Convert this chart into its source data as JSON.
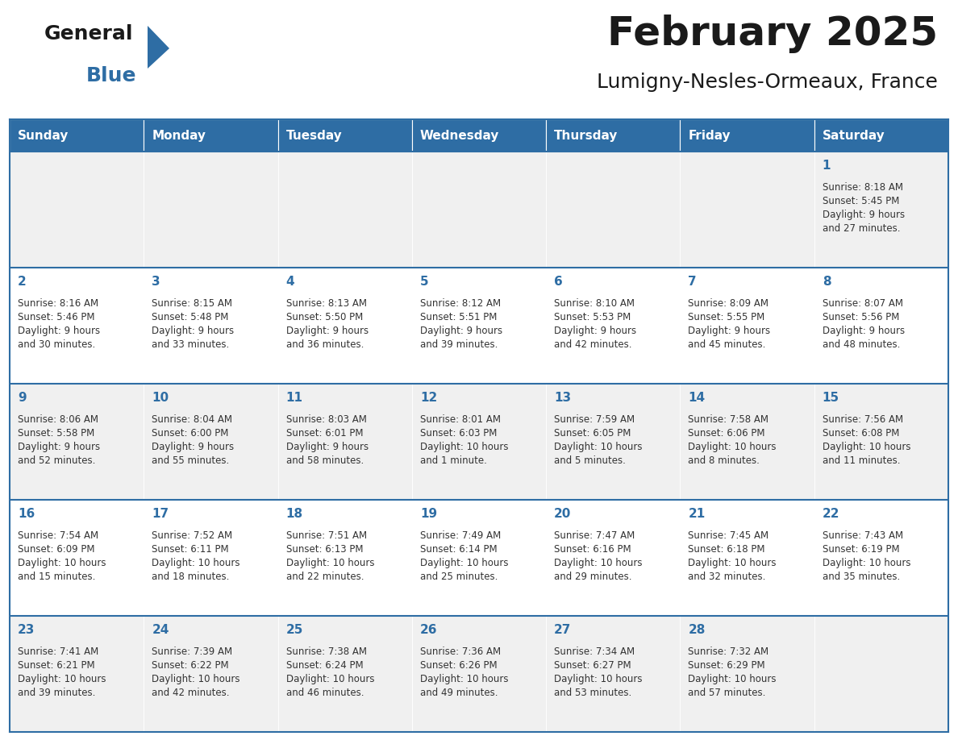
{
  "title": "February 2025",
  "subtitle": "Lumigny-Nesles-Ormeaux, France",
  "header_bg_color": "#2E6DA4",
  "header_text_color": "#FFFFFF",
  "cell_bg_odd": "#F0F0F0",
  "cell_bg_even": "#FFFFFF",
  "day_number_color": "#2E6DA4",
  "text_color": "#333333",
  "line_color": "#2E6DA4",
  "days_of_week": [
    "Sunday",
    "Monday",
    "Tuesday",
    "Wednesday",
    "Thursday",
    "Friday",
    "Saturday"
  ],
  "weeks": [
    [
      {
        "day": null,
        "info": null
      },
      {
        "day": null,
        "info": null
      },
      {
        "day": null,
        "info": null
      },
      {
        "day": null,
        "info": null
      },
      {
        "day": null,
        "info": null
      },
      {
        "day": null,
        "info": null
      },
      {
        "day": 1,
        "info": "Sunrise: 8:18 AM\nSunset: 5:45 PM\nDaylight: 9 hours\nand 27 minutes."
      }
    ],
    [
      {
        "day": 2,
        "info": "Sunrise: 8:16 AM\nSunset: 5:46 PM\nDaylight: 9 hours\nand 30 minutes."
      },
      {
        "day": 3,
        "info": "Sunrise: 8:15 AM\nSunset: 5:48 PM\nDaylight: 9 hours\nand 33 minutes."
      },
      {
        "day": 4,
        "info": "Sunrise: 8:13 AM\nSunset: 5:50 PM\nDaylight: 9 hours\nand 36 minutes."
      },
      {
        "day": 5,
        "info": "Sunrise: 8:12 AM\nSunset: 5:51 PM\nDaylight: 9 hours\nand 39 minutes."
      },
      {
        "day": 6,
        "info": "Sunrise: 8:10 AM\nSunset: 5:53 PM\nDaylight: 9 hours\nand 42 minutes."
      },
      {
        "day": 7,
        "info": "Sunrise: 8:09 AM\nSunset: 5:55 PM\nDaylight: 9 hours\nand 45 minutes."
      },
      {
        "day": 8,
        "info": "Sunrise: 8:07 AM\nSunset: 5:56 PM\nDaylight: 9 hours\nand 48 minutes."
      }
    ],
    [
      {
        "day": 9,
        "info": "Sunrise: 8:06 AM\nSunset: 5:58 PM\nDaylight: 9 hours\nand 52 minutes."
      },
      {
        "day": 10,
        "info": "Sunrise: 8:04 AM\nSunset: 6:00 PM\nDaylight: 9 hours\nand 55 minutes."
      },
      {
        "day": 11,
        "info": "Sunrise: 8:03 AM\nSunset: 6:01 PM\nDaylight: 9 hours\nand 58 minutes."
      },
      {
        "day": 12,
        "info": "Sunrise: 8:01 AM\nSunset: 6:03 PM\nDaylight: 10 hours\nand 1 minute."
      },
      {
        "day": 13,
        "info": "Sunrise: 7:59 AM\nSunset: 6:05 PM\nDaylight: 10 hours\nand 5 minutes."
      },
      {
        "day": 14,
        "info": "Sunrise: 7:58 AM\nSunset: 6:06 PM\nDaylight: 10 hours\nand 8 minutes."
      },
      {
        "day": 15,
        "info": "Sunrise: 7:56 AM\nSunset: 6:08 PM\nDaylight: 10 hours\nand 11 minutes."
      }
    ],
    [
      {
        "day": 16,
        "info": "Sunrise: 7:54 AM\nSunset: 6:09 PM\nDaylight: 10 hours\nand 15 minutes."
      },
      {
        "day": 17,
        "info": "Sunrise: 7:52 AM\nSunset: 6:11 PM\nDaylight: 10 hours\nand 18 minutes."
      },
      {
        "day": 18,
        "info": "Sunrise: 7:51 AM\nSunset: 6:13 PM\nDaylight: 10 hours\nand 22 minutes."
      },
      {
        "day": 19,
        "info": "Sunrise: 7:49 AM\nSunset: 6:14 PM\nDaylight: 10 hours\nand 25 minutes."
      },
      {
        "day": 20,
        "info": "Sunrise: 7:47 AM\nSunset: 6:16 PM\nDaylight: 10 hours\nand 29 minutes."
      },
      {
        "day": 21,
        "info": "Sunrise: 7:45 AM\nSunset: 6:18 PM\nDaylight: 10 hours\nand 32 minutes."
      },
      {
        "day": 22,
        "info": "Sunrise: 7:43 AM\nSunset: 6:19 PM\nDaylight: 10 hours\nand 35 minutes."
      }
    ],
    [
      {
        "day": 23,
        "info": "Sunrise: 7:41 AM\nSunset: 6:21 PM\nDaylight: 10 hours\nand 39 minutes."
      },
      {
        "day": 24,
        "info": "Sunrise: 7:39 AM\nSunset: 6:22 PM\nDaylight: 10 hours\nand 42 minutes."
      },
      {
        "day": 25,
        "info": "Sunrise: 7:38 AM\nSunset: 6:24 PM\nDaylight: 10 hours\nand 46 minutes."
      },
      {
        "day": 26,
        "info": "Sunrise: 7:36 AM\nSunset: 6:26 PM\nDaylight: 10 hours\nand 49 minutes."
      },
      {
        "day": 27,
        "info": "Sunrise: 7:34 AM\nSunset: 6:27 PM\nDaylight: 10 hours\nand 53 minutes."
      },
      {
        "day": 28,
        "info": "Sunrise: 7:32 AM\nSunset: 6:29 PM\nDaylight: 10 hours\nand 57 minutes."
      },
      {
        "day": null,
        "info": null
      }
    ]
  ],
  "logo_general_color": "#1a1a1a",
  "logo_blue_color": "#2E6DA4",
  "title_fontsize": 36,
  "subtitle_fontsize": 18,
  "header_fontsize": 11,
  "day_num_fontsize": 11,
  "cell_text_fontsize": 8.5
}
